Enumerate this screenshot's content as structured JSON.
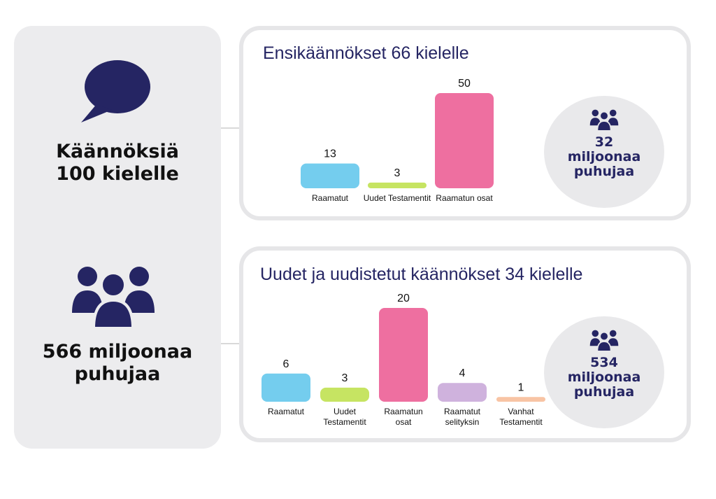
{
  "sidebar": {
    "icon_top": "speech-bubble-icon",
    "stat_top_line1": "Käännöksiä",
    "stat_top_line2": "100 kielelle",
    "icon_bottom": "people-group-icon",
    "stat_bottom_line1": "566 miljoonaa",
    "stat_bottom_line2": "puhujaa"
  },
  "panel1": {
    "title": "Ensikäännökset 66 kielelle",
    "speakers_icon": "people-group-icon",
    "speakers_line1": "32",
    "speakers_line2": "miljoonaa",
    "speakers_line3": "puhujaa"
  },
  "panel2": {
    "title": "Uudet ja uudistetut käännökset 34 kielelle",
    "speakers_icon": "people-group-icon",
    "speakers_line1": "534",
    "speakers_line2": "miljoonaa",
    "speakers_line3": "puhujaa"
  },
  "colors": {
    "navy": "#252563",
    "blue": "#74cdee",
    "green": "#c6e462",
    "pink": "#ee6fa0",
    "lavender": "#cfb2dd",
    "peach": "#f8c4a4"
  },
  "chart_data": [
    {
      "type": "bar",
      "title": "Ensikäännökset 66 kielelle",
      "categories": [
        [
          "Raamatut"
        ],
        [
          "Uudet Testamentit"
        ],
        [
          "Raamatun osat"
        ]
      ],
      "values": [
        13,
        3,
        50
      ],
      "colors": [
        "#74cdee",
        "#c6e462",
        "#ee6fa0"
      ],
      "ylim": [
        0,
        50
      ],
      "data_labels": true,
      "grid": false
    },
    {
      "type": "bar",
      "title": "Uudet ja uudistetut käännökset 34 kielelle",
      "categories": [
        [
          "Raamatut"
        ],
        [
          "Uudet",
          "Testamentit"
        ],
        [
          "Raamatun",
          "osat"
        ],
        [
          "Raamatut",
          "selityksin"
        ],
        [
          "Vanhat",
          "Testamentit"
        ]
      ],
      "values": [
        6,
        3,
        20,
        4,
        1
      ],
      "colors": [
        "#74cdee",
        "#c6e462",
        "#ee6fa0",
        "#cfb2dd",
        "#f8c4a4"
      ],
      "ylim": [
        0,
        20
      ],
      "data_labels": true,
      "grid": false
    }
  ]
}
